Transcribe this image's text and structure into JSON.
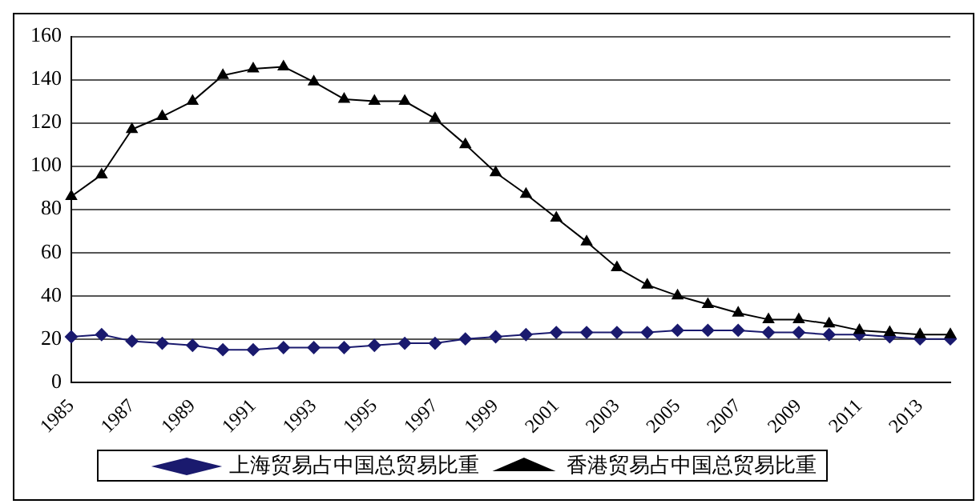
{
  "chart_data": {
    "type": "line",
    "categories": [
      "1985",
      null,
      "1987",
      null,
      "1989",
      null,
      "1991",
      null,
      "1993",
      null,
      "1995",
      null,
      "1997",
      null,
      "1999",
      null,
      "2001",
      null,
      "2003",
      null,
      "2005",
      null,
      "2007",
      null,
      "2009",
      null,
      "2011",
      null,
      "2013",
      null
    ],
    "series": [
      {
        "name": "上海贸易占中国总贸易比重",
        "color": "#1a1a6e",
        "marker": "diamond",
        "values": [
          21,
          22,
          19,
          18,
          17,
          15,
          15,
          16,
          16,
          16,
          17,
          18,
          18,
          20,
          21,
          22,
          23,
          23,
          23,
          23,
          24,
          24,
          24,
          23,
          23,
          22,
          22,
          21,
          20,
          20
        ]
      },
      {
        "name": "香港贸易占中国总贸易比重",
        "color": "#000000",
        "marker": "triangle",
        "values": [
          86,
          96,
          117,
          123,
          130,
          142,
          145,
          146,
          139,
          131,
          130,
          130,
          122,
          110,
          97,
          87,
          76,
          65,
          53,
          45,
          40,
          36,
          32,
          29,
          29,
          27,
          24,
          23,
          22,
          22
        ]
      }
    ],
    "ylim": [
      0,
      160
    ],
    "yticks": [
      0,
      20,
      40,
      60,
      80,
      100,
      120,
      140,
      160
    ],
    "grid": "y",
    "legend": "bottom",
    "line_style": "solid"
  }
}
